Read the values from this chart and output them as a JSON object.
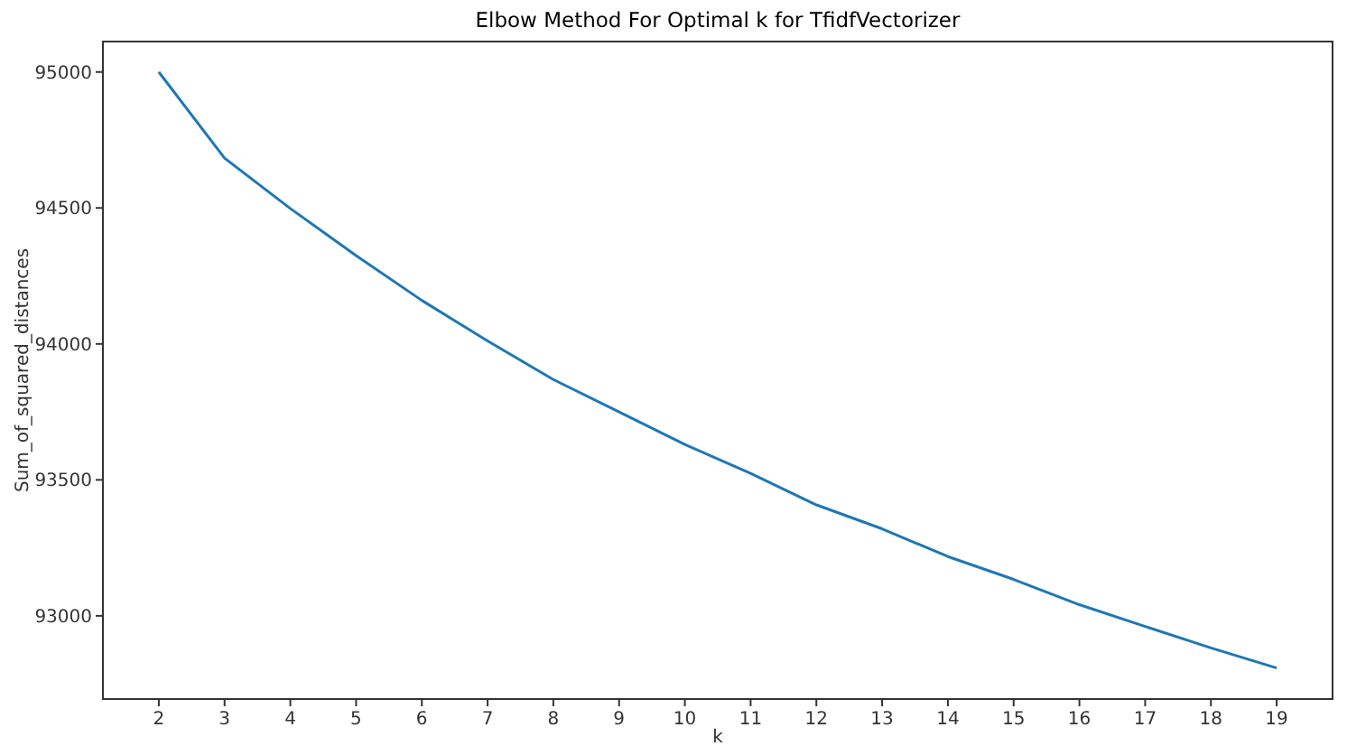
{
  "chart_data": {
    "type": "line",
    "title": "Elbow Method For Optimal k for TfidfVectorizer",
    "xlabel": "k",
    "ylabel": "Sum_of_squared_distances",
    "x": [
      2,
      3,
      4,
      5,
      6,
      7,
      8,
      9,
      10,
      11,
      12,
      13,
      14,
      15,
      16,
      17,
      18,
      19
    ],
    "series": [
      {
        "color": "#1f77b4",
        "values": [
          95000,
          94683,
          94498,
          94325,
          94160,
          94011,
          93869,
          93750,
          93630,
          93524,
          93408,
          93320,
          93218,
          93134,
          93041,
          92961,
          92882,
          92808
        ]
      }
    ],
    "xlim": [
      1.15,
      19.85
    ],
    "xticks": [
      2,
      3,
      4,
      5,
      6,
      7,
      8,
      9,
      10,
      11,
      12,
      13,
      14,
      15,
      16,
      17,
      18,
      19
    ],
    "ylim": [
      92694,
      95112
    ],
    "yticks": [
      93000,
      93500,
      94000,
      94500,
      95000
    ],
    "grid": false,
    "marker": "none",
    "line_style": "solid"
  }
}
